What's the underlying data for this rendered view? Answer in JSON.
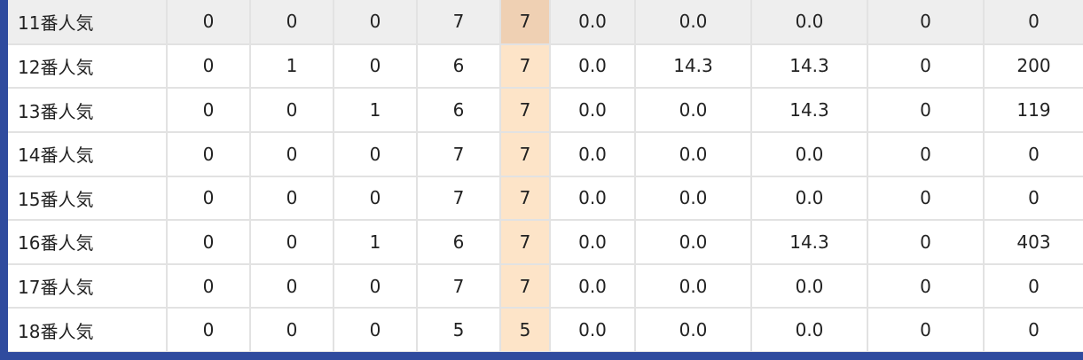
{
  "table": {
    "rows": [
      {
        "label": "11番人気",
        "cells": [
          "0",
          "0",
          "0",
          "7",
          "7",
          "0.0",
          "0.0",
          "0.0",
          "0",
          "0"
        ]
      },
      {
        "label": "12番人気",
        "cells": [
          "0",
          "1",
          "0",
          "6",
          "7",
          "0.0",
          "14.3",
          "14.3",
          "0",
          "200"
        ]
      },
      {
        "label": "13番人気",
        "cells": [
          "0",
          "0",
          "1",
          "6",
          "7",
          "0.0",
          "0.0",
          "14.3",
          "0",
          "119"
        ]
      },
      {
        "label": "14番人気",
        "cells": [
          "0",
          "0",
          "0",
          "7",
          "7",
          "0.0",
          "0.0",
          "0.0",
          "0",
          "0"
        ]
      },
      {
        "label": "15番人気",
        "cells": [
          "0",
          "0",
          "0",
          "7",
          "7",
          "0.0",
          "0.0",
          "0.0",
          "0",
          "0"
        ]
      },
      {
        "label": "16番人気",
        "cells": [
          "0",
          "0",
          "1",
          "6",
          "7",
          "0.0",
          "0.0",
          "14.3",
          "0",
          "403"
        ]
      },
      {
        "label": "17番人気",
        "cells": [
          "0",
          "0",
          "0",
          "7",
          "7",
          "0.0",
          "0.0",
          "0.0",
          "0",
          "0"
        ]
      },
      {
        "label": "18番人気",
        "cells": [
          "0",
          "0",
          "0",
          "5",
          "5",
          "0.0",
          "0.0",
          "0.0",
          "0",
          "0"
        ]
      }
    ]
  },
  "colors": {
    "background": "#2f4b9e",
    "highlight_column": "#fde4c8",
    "highlight_column_first_row": "#efd0b3",
    "first_row": "#eeeeee",
    "grid": "#e2e2e2"
  }
}
